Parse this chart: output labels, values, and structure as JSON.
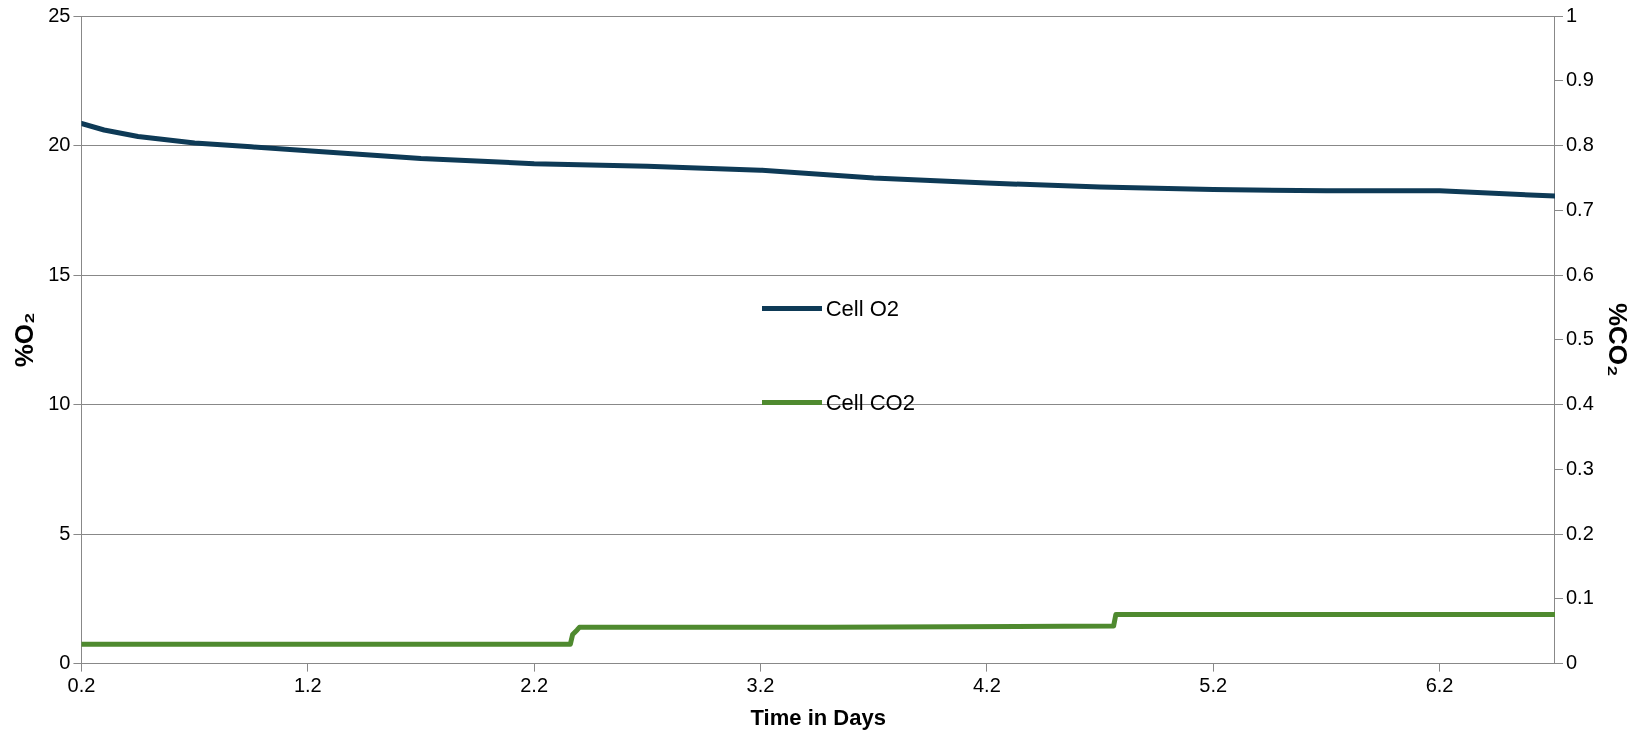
{
  "chart_data": {
    "type": "line",
    "xlabel": "Time in Days",
    "ylabel": "%O₂",
    "y2label": "%CO₂",
    "xlim": [
      0.2,
      6.71
    ],
    "xticks": [
      0.2,
      1.2,
      2.2,
      3.2,
      4.2,
      5.2,
      6.2
    ],
    "ylim": [
      0,
      25
    ],
    "yticks": [
      0,
      5,
      10,
      15,
      20,
      25
    ],
    "y2lim": [
      0,
      1
    ],
    "y2ticks": [
      0,
      0.1,
      0.2,
      0.3,
      0.4,
      0.5,
      0.6,
      0.7,
      0.8,
      0.9,
      1
    ],
    "grid": "y",
    "legend": "center",
    "marker": "none",
    "line_style": "solid",
    "series": [
      {
        "name": "Cell O2",
        "color": "#0e3a56",
        "x": [
          0.2,
          0.3,
          0.45,
          0.7,
          0.95,
          1.2,
          1.7,
          2.2,
          2.7,
          3.2,
          3.7,
          4.2,
          4.7,
          5.2,
          5.7,
          6.2,
          6.71
        ],
        "values": [
          20.85,
          20.6,
          20.35,
          20.1,
          19.95,
          19.8,
          19.5,
          19.3,
          19.2,
          19.05,
          18.75,
          18.55,
          18.4,
          18.3,
          18.25,
          18.25,
          18.05
        ]
      },
      {
        "name": "Cell CO2",
        "color": "#4f8a2f",
        "axis": "y2",
        "x": [
          0.2,
          2.36,
          2.37,
          2.39,
          2.4,
          3.5,
          4.76,
          4.77,
          6.71
        ],
        "values": [
          0.03,
          0.03,
          0.045,
          0.052,
          0.056,
          0.056,
          0.058,
          0.076,
          0.076
        ]
      }
    ]
  }
}
